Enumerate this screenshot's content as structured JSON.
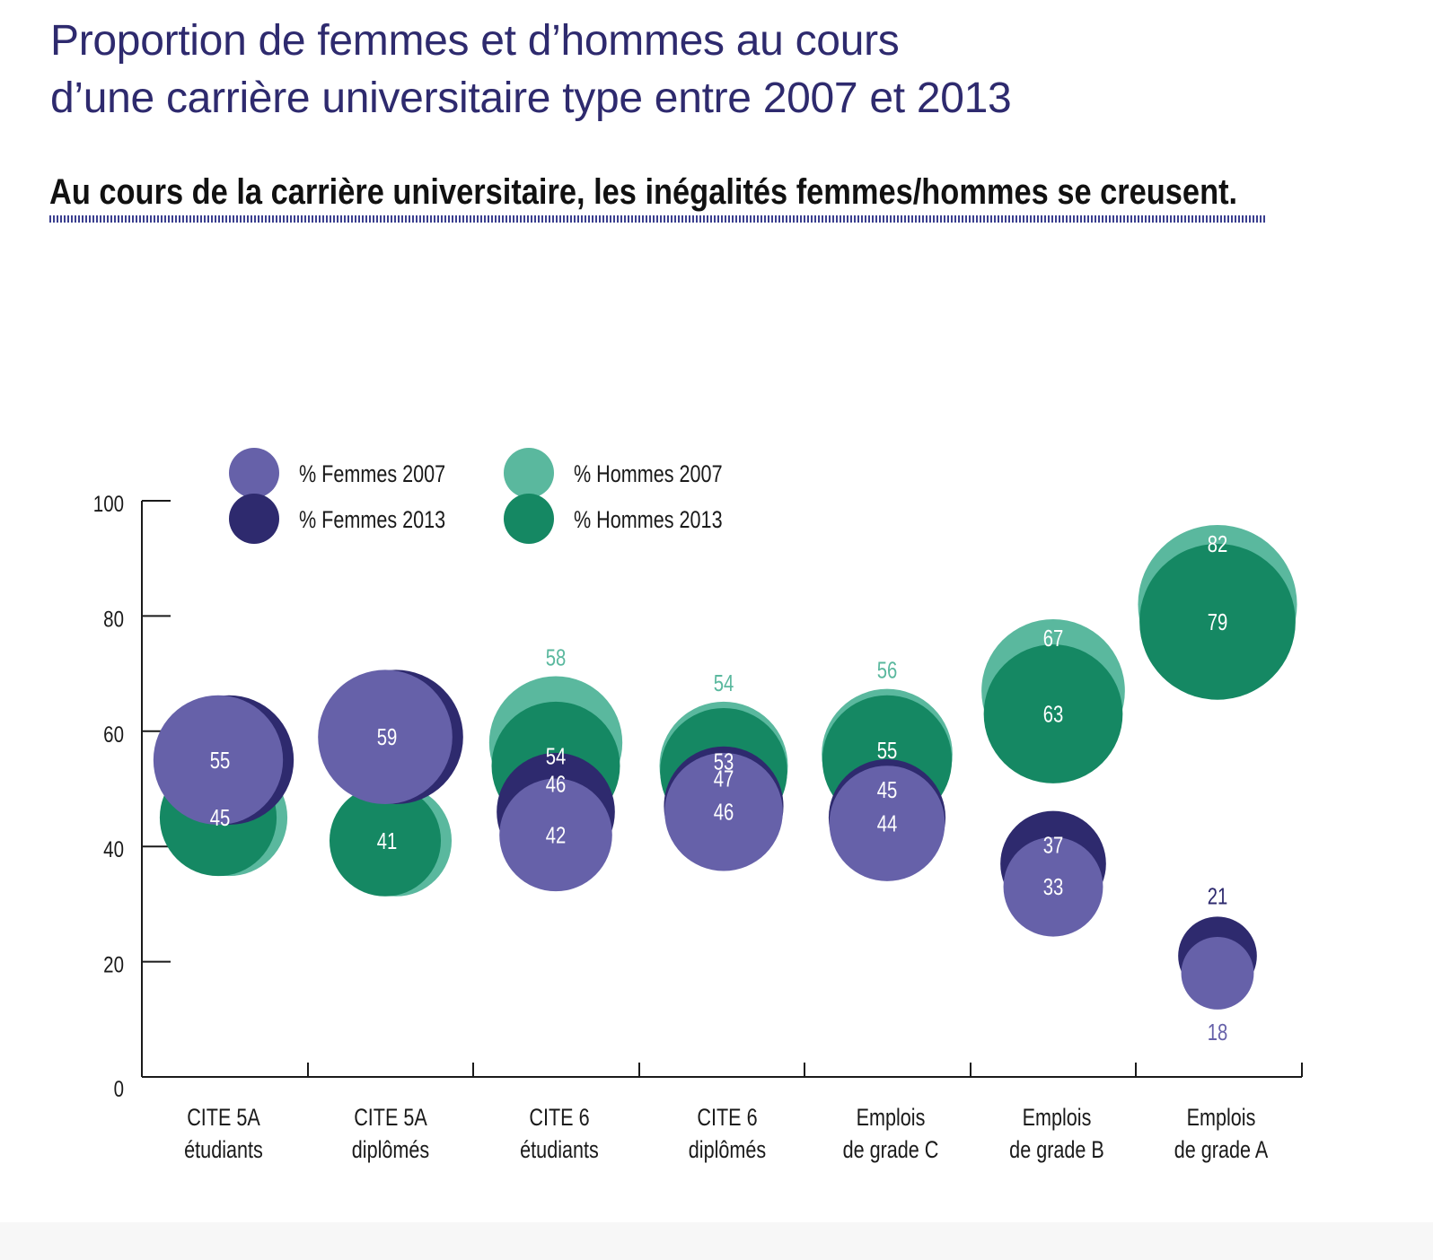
{
  "title": {
    "line1": "Proportion de femmes et d’hommes au cours",
    "line2": "d’une carrière universitaire type entre 2007 et 2013"
  },
  "subtitle": "Au cours de la carrière universitaire, les inégalités femmes/hommes se creusent.",
  "colors": {
    "femmes_2007": "#6661a9",
    "femmes_2013": "#2e2a6e",
    "hommes_2007": "#5ab89e",
    "hommes_2013": "#158863",
    "title": "#2e2a6e"
  },
  "chart_data": {
    "type": "scatter",
    "title": "",
    "xlabel": "",
    "ylabel": "",
    "ylim": [
      0,
      100
    ],
    "yticks": [
      "0",
      "20",
      "40",
      "60",
      "80",
      "100"
    ],
    "grid": false,
    "legend_position": "top-left",
    "categories": [
      [
        "CITE 5A",
        "étudiants"
      ],
      [
        "CITE 5A",
        "diplômés"
      ],
      [
        "CITE 6",
        "étudiants"
      ],
      [
        "CITE 6",
        "diplômés"
      ],
      [
        "Emplois",
        "de grade C"
      ],
      [
        "Emplois",
        "de grade B"
      ],
      [
        "Emplois",
        "de grade A"
      ]
    ],
    "series": [
      {
        "name": "% Femmes 2007",
        "key": "femmes_2007",
        "values": [
          55,
          59,
          42,
          46,
          44,
          33,
          18
        ]
      },
      {
        "name": "% Femmes 2013",
        "key": "femmes_2013",
        "values": [
          null,
          null,
          46,
          47,
          45,
          37,
          21
        ]
      },
      {
        "name": "% Hommes 2007",
        "key": "hommes_2007",
        "values": [
          null,
          null,
          58,
          54,
          56,
          67,
          82
        ]
      },
      {
        "name": "% Hommes 2013",
        "key": "hommes_2013",
        "values": [
          45,
          41,
          54,
          53,
          55,
          63,
          79
        ]
      }
    ]
  }
}
